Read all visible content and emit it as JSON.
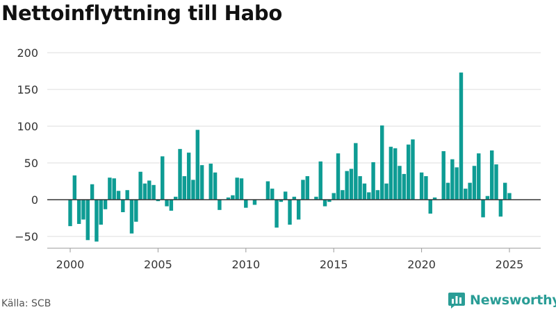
{
  "title": "Nettoinflyttning till Habo",
  "source": "Källa: SCB",
  "brand": {
    "name": "Newsworthy",
    "icon": "bar-chart-icon"
  },
  "colors": {
    "bar": "#0e9c94",
    "grid": "#dddddd",
    "zero": "#333333",
    "brand": "#2a9d96"
  },
  "chart_data": {
    "type": "bar",
    "title": "Nettoinflyttning till Habo",
    "xlabel": "",
    "ylabel": "",
    "frequency": "quarterly",
    "xlim": [
      1999.0,
      2026.0
    ],
    "ylim": [
      -60,
      200
    ],
    "yticks": [
      -50,
      0,
      50,
      100,
      150,
      200
    ],
    "xticks": [
      2000,
      2005,
      2010,
      2015,
      2020,
      2025
    ],
    "grid": true,
    "legend": "none",
    "start": "2000-Q1",
    "values": [
      -36,
      33,
      -33,
      -27,
      -55,
      21,
      -57,
      -34,
      -13,
      30,
      29,
      12,
      -17,
      13,
      -46,
      -30,
      38,
      22,
      26,
      20,
      -2,
      59,
      -9,
      -15,
      4,
      69,
      32,
      64,
      27,
      95,
      47,
      0,
      49,
      37,
      -14,
      0,
      3,
      6,
      30,
      29,
      -11,
      0,
      -7,
      0,
      0,
      25,
      15,
      -38,
      -3,
      11,
      -34,
      4,
      -27,
      27,
      32,
      0,
      4,
      52,
      -9,
      -3,
      9,
      63,
      13,
      39,
      42,
      77,
      32,
      22,
      10,
      51,
      13,
      101,
      22,
      72,
      70,
      46,
      35,
      75,
      82,
      0,
      37,
      32,
      -19,
      3,
      0,
      66,
      23,
      55,
      44,
      173,
      15,
      23,
      46,
      63,
      -24,
      5,
      67,
      48,
      -23,
      23,
      9
    ]
  }
}
